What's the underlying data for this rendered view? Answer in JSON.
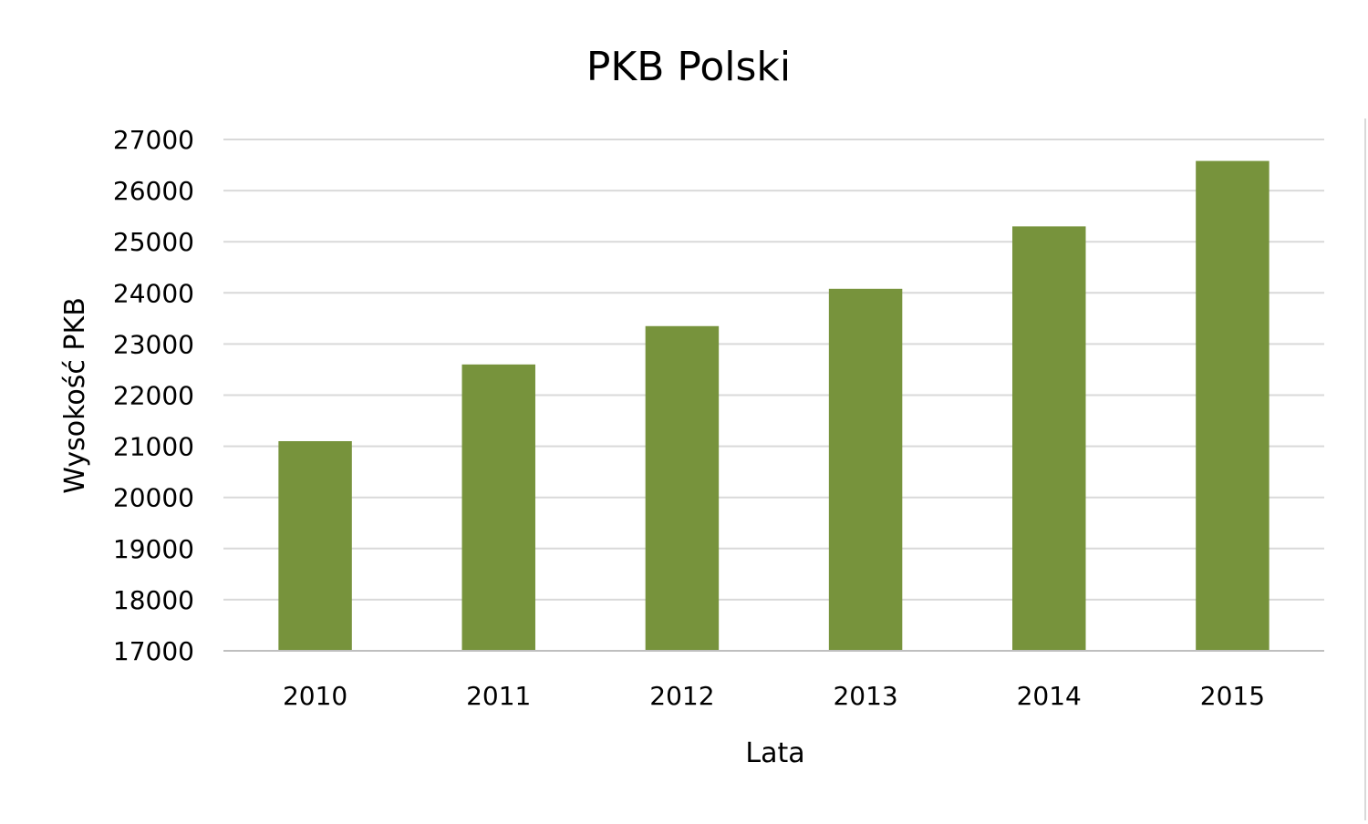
{
  "chart_data": {
    "type": "bar",
    "title": "PKB Polski",
    "xlabel": "Lata",
    "ylabel": "Wysokość PKB",
    "categories": [
      "2010",
      "2011",
      "2012",
      "2013",
      "2014",
      "2015"
    ],
    "values": [
      21100,
      22600,
      23350,
      24080,
      25300,
      26580
    ],
    "ylim": [
      17000,
      27000
    ],
    "yticks": [
      17000,
      18000,
      19000,
      20000,
      21000,
      22000,
      23000,
      24000,
      25000,
      26000,
      27000
    ],
    "ytick_labels": [
      "17000",
      "18000",
      "19000",
      "20000",
      "21000",
      "22000",
      "23000",
      "24000",
      "25000",
      "26000",
      "27000"
    ],
    "grid": true,
    "legend": "none",
    "colors": {
      "bar": "#77933c",
      "grid": "#d9d9d9",
      "axis": "#bfbfbf",
      "text": "#000000"
    }
  }
}
